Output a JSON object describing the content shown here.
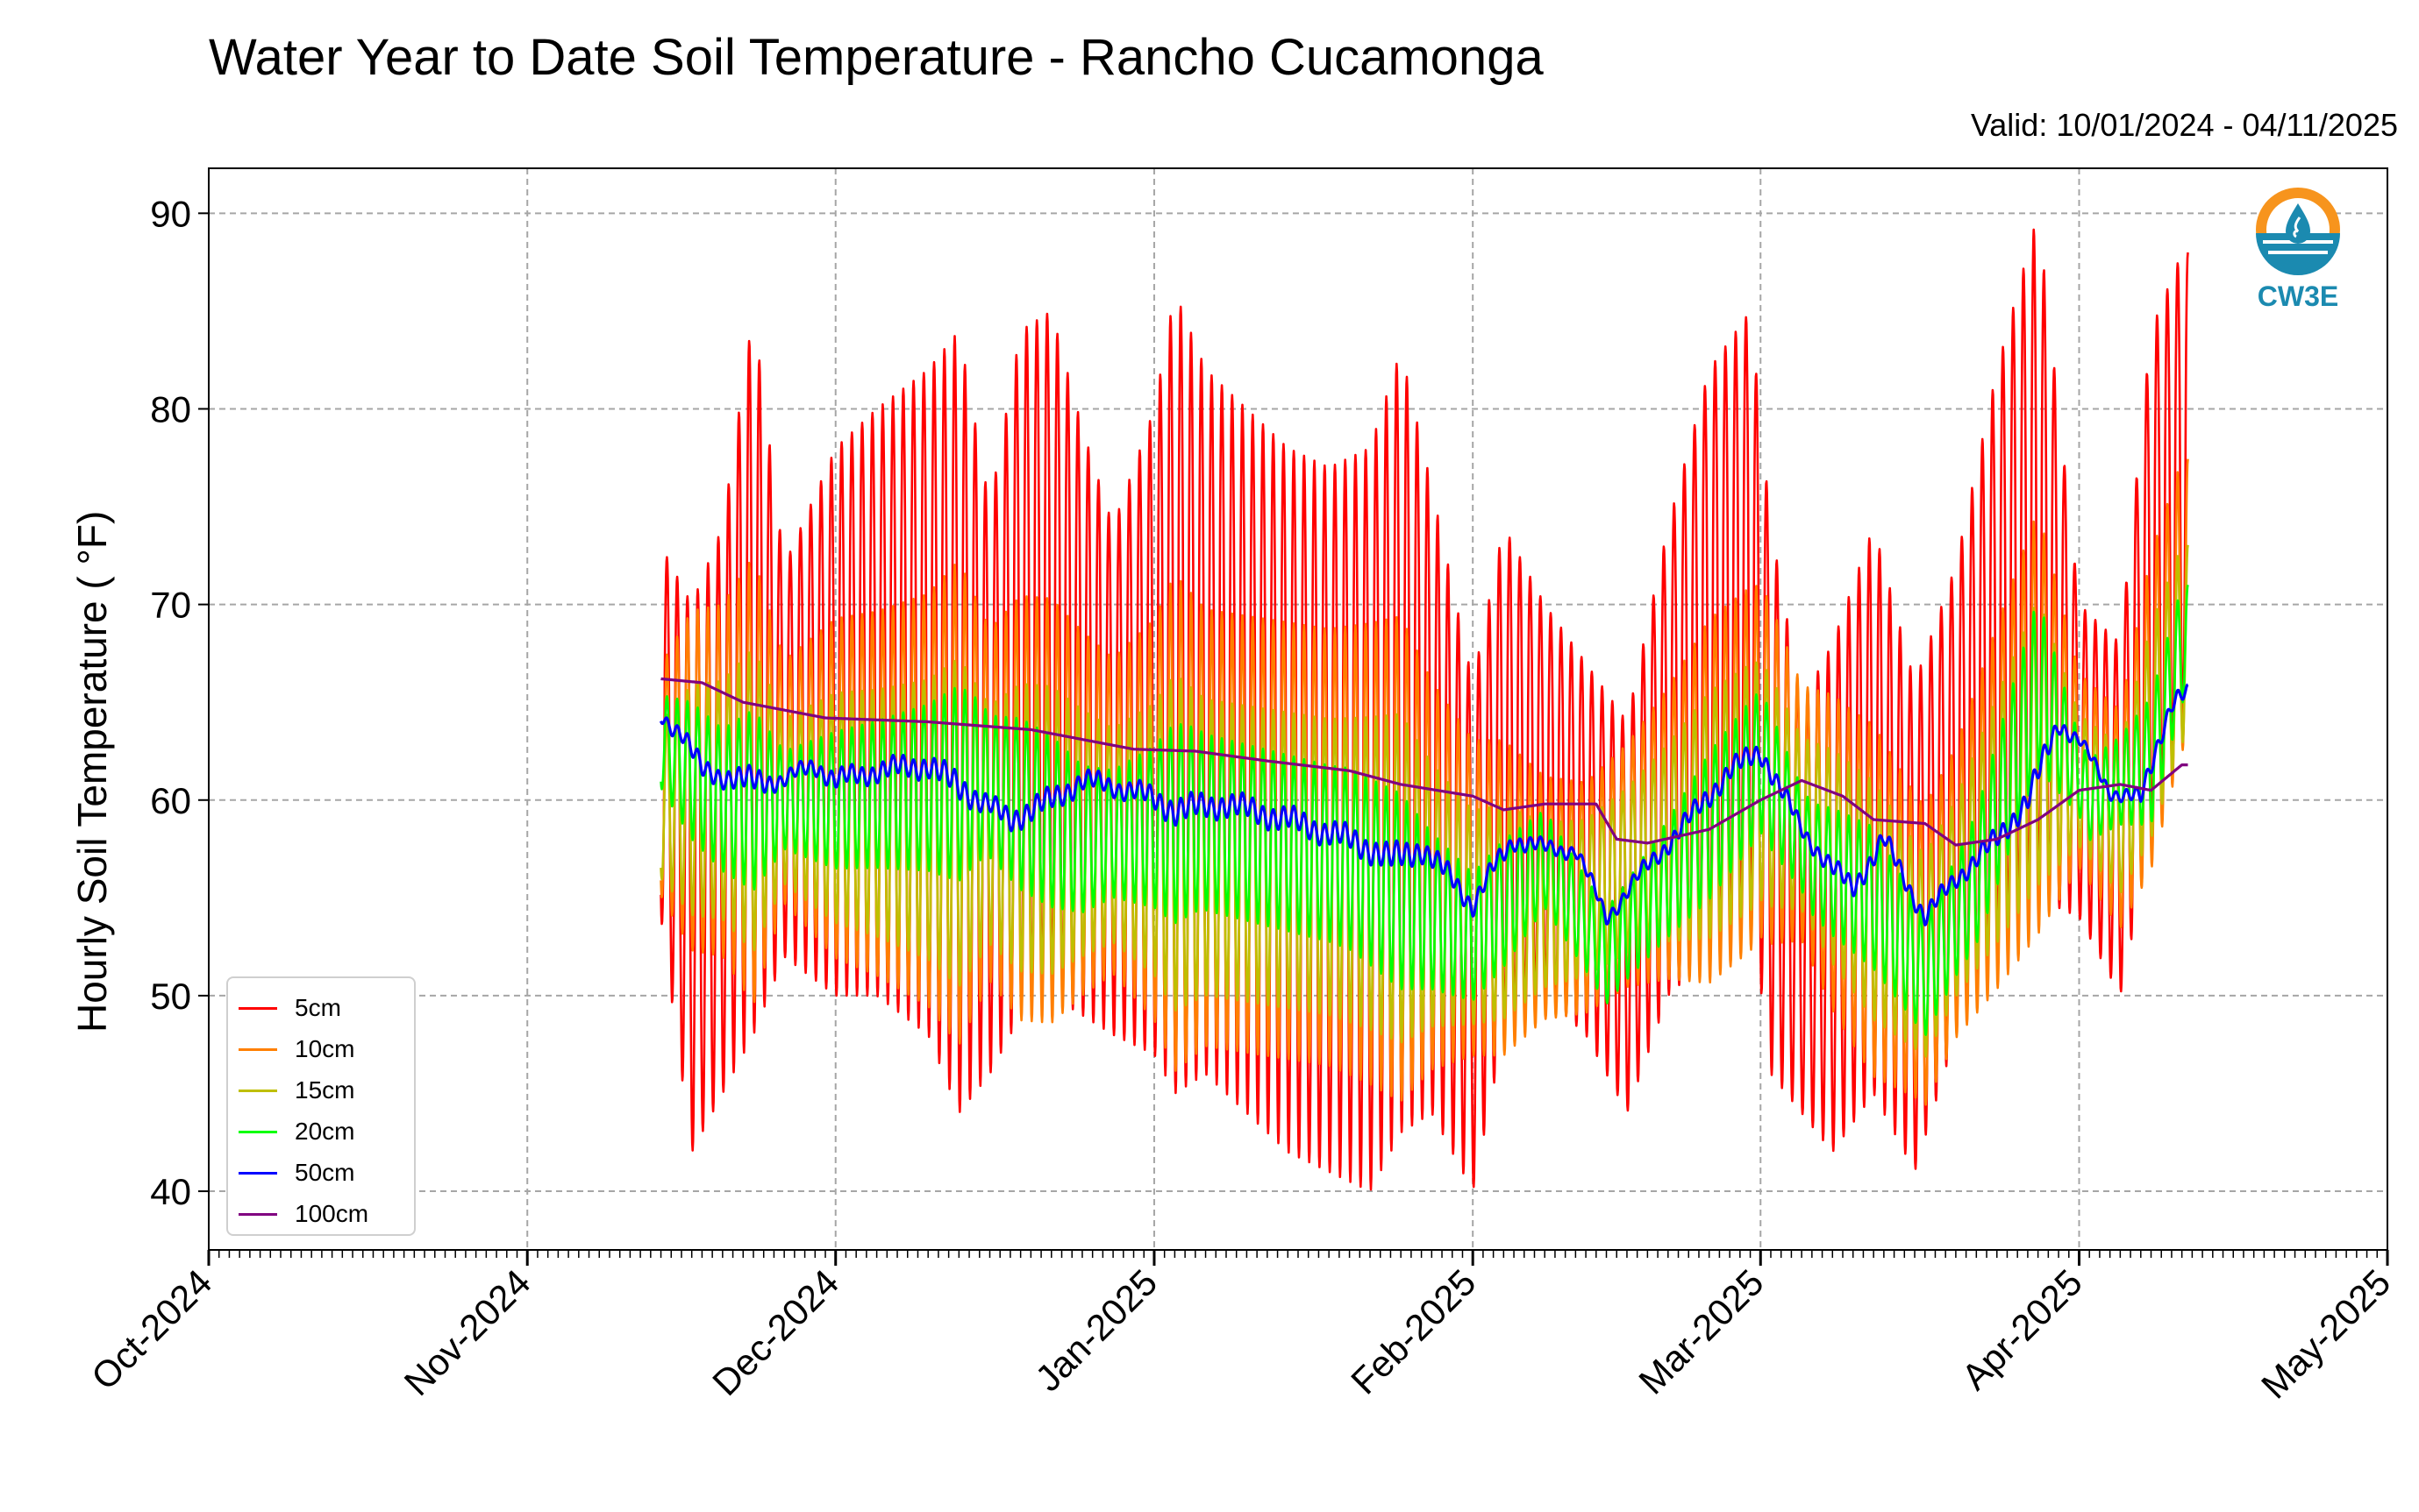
{
  "chart_data": {
    "type": "line",
    "title": "Water Year to Date Soil Temperature - Rancho Cucamonga",
    "subtitle": "Valid: 10/01/2024 - 04/11/2025",
    "ylabel": "Hourly Soil Temperature ( °F)",
    "xlabel": "",
    "xlim": [
      "2024-10-01",
      "2025-05-01"
    ],
    "ylim": [
      37,
      92.3
    ],
    "x_ticks": [
      {
        "date": "2024-10-01",
        "label": "Oct-2024"
      },
      {
        "date": "2024-11-01",
        "label": "Nov-2024"
      },
      {
        "date": "2024-12-01",
        "label": "Dec-2024"
      },
      {
        "date": "2025-01-01",
        "label": "Jan-2025"
      },
      {
        "date": "2025-02-01",
        "label": "Feb-2025"
      },
      {
        "date": "2025-03-01",
        "label": "Mar-2025"
      },
      {
        "date": "2025-04-01",
        "label": "Apr-2025"
      },
      {
        "date": "2025-05-01",
        "label": "May-2025"
      }
    ],
    "y_ticks": [
      40,
      50,
      60,
      70,
      80,
      90
    ],
    "grid": true,
    "legend_position": "lower-left",
    "series": [
      {
        "name": "5cm",
        "color": "#ff0000",
        "trend": [
          [
            "2024-11-14",
            62
          ],
          [
            "2024-11-25",
            63
          ],
          [
            "2024-12-05",
            61
          ],
          [
            "2024-12-20",
            62
          ],
          [
            "2025-01-05",
            60
          ],
          [
            "2025-01-20",
            59
          ],
          [
            "2025-02-01",
            56
          ],
          [
            "2025-02-15",
            56
          ],
          [
            "2025-03-01",
            64
          ],
          [
            "2025-03-08",
            57
          ],
          [
            "2025-03-17",
            54
          ],
          [
            "2025-03-28",
            66
          ],
          [
            "2025-04-05",
            60
          ],
          [
            "2025-04-11",
            72
          ]
        ],
        "daily_max": [
          [
            "2024-11-14",
            73
          ],
          [
            "2024-11-17",
            70
          ],
          [
            "2024-11-20",
            74
          ],
          [
            "2024-11-23",
            85
          ],
          [
            "2024-11-26",
            72
          ],
          [
            "2024-12-01",
            78
          ],
          [
            "2024-12-05",
            80
          ],
          [
            "2024-12-10",
            82
          ],
          [
            "2024-12-13",
            84
          ],
          [
            "2024-12-16",
            75
          ],
          [
            "2024-12-19",
            84
          ],
          [
            "2024-12-22",
            85
          ],
          [
            "2024-12-25",
            79
          ],
          [
            "2024-12-28",
            74
          ],
          [
            "2025-01-01",
            80
          ],
          [
            "2025-01-03",
            86
          ],
          [
            "2025-01-06",
            82
          ],
          [
            "2025-01-10",
            80
          ],
          [
            "2025-01-14",
            78
          ],
          [
            "2025-01-18",
            77
          ],
          [
            "2025-01-22",
            78
          ],
          [
            "2025-01-25",
            83
          ],
          [
            "2025-01-28",
            76
          ],
          [
            "2025-02-01",
            66
          ],
          [
            "2025-02-04",
            74
          ],
          [
            "2025-02-08",
            70
          ],
          [
            "2025-02-12",
            67
          ],
          [
            "2025-02-16",
            64
          ],
          [
            "2025-02-20",
            74
          ],
          [
            "2025-02-24",
            82
          ],
          [
            "2025-02-28",
            85
          ],
          [
            "2025-03-02",
            74
          ],
          [
            "2025-03-05",
            65
          ],
          [
            "2025-03-08",
            68
          ],
          [
            "2025-03-12",
            74
          ],
          [
            "2025-03-16",
            66
          ],
          [
            "2025-03-20",
            72
          ],
          [
            "2025-03-24",
            82
          ],
          [
            "2025-03-28",
            90
          ],
          [
            "2025-04-01",
            70
          ],
          [
            "2025-04-05",
            68
          ],
          [
            "2025-04-08",
            84
          ],
          [
            "2025-04-11",
            88
          ]
        ],
        "daily_min": [
          [
            "2024-11-14",
            54
          ],
          [
            "2024-11-17",
            42
          ],
          [
            "2024-11-20",
            45
          ],
          [
            "2024-11-23",
            48
          ],
          [
            "2024-11-26",
            52
          ],
          [
            "2024-12-01",
            50
          ],
          [
            "2024-12-05",
            50
          ],
          [
            "2024-12-10",
            48
          ],
          [
            "2024-12-13",
            44
          ],
          [
            "2024-12-16",
            46
          ],
          [
            "2024-12-19",
            49
          ],
          [
            "2024-12-22",
            50
          ],
          [
            "2024-12-25",
            49
          ],
          [
            "2024-12-28",
            48
          ],
          [
            "2025-01-01",
            47
          ],
          [
            "2025-01-03",
            45
          ],
          [
            "2025-01-06",
            46
          ],
          [
            "2025-01-10",
            44
          ],
          [
            "2025-01-14",
            42
          ],
          [
            "2025-01-18",
            41
          ],
          [
            "2025-01-22",
            40
          ],
          [
            "2025-01-25",
            43
          ],
          [
            "2025-01-28",
            44
          ],
          [
            "2025-02-01",
            40
          ],
          [
            "2025-02-04",
            48
          ],
          [
            "2025-02-08",
            50
          ],
          [
            "2025-02-12",
            48
          ],
          [
            "2025-02-16",
            44
          ],
          [
            "2025-02-20",
            50
          ],
          [
            "2025-02-24",
            52
          ],
          [
            "2025-02-28",
            55
          ],
          [
            "2025-03-02",
            46
          ],
          [
            "2025-03-05",
            44
          ],
          [
            "2025-03-08",
            42
          ],
          [
            "2025-03-12",
            45
          ],
          [
            "2025-03-16",
            41
          ],
          [
            "2025-03-20",
            48
          ],
          [
            "2025-03-24",
            52
          ],
          [
            "2025-03-28",
            55
          ],
          [
            "2025-04-01",
            54
          ],
          [
            "2025-04-05",
            50
          ],
          [
            "2025-04-08",
            58
          ],
          [
            "2025-04-11",
            64
          ]
        ]
      },
      {
        "name": "10cm",
        "color": "#ff7f00",
        "trend": [
          [
            "2024-11-14",
            61
          ],
          [
            "2024-11-25",
            61
          ],
          [
            "2024-12-10",
            60
          ],
          [
            "2025-01-01",
            59
          ],
          [
            "2025-01-25",
            57
          ],
          [
            "2025-02-01",
            55
          ],
          [
            "2025-02-12",
            55
          ],
          [
            "2025-03-01",
            62
          ],
          [
            "2025-03-10",
            56
          ],
          [
            "2025-03-17",
            52
          ],
          [
            "2025-03-28",
            64
          ],
          [
            "2025-04-05",
            59
          ],
          [
            "2025-04-11",
            70
          ]
        ]
      },
      {
        "name": "15cm",
        "color": "#bfbf00",
        "trend": [
          [
            "2024-11-14",
            60
          ],
          [
            "2024-11-25",
            60
          ],
          [
            "2024-12-10",
            59
          ],
          [
            "2025-01-01",
            58
          ],
          [
            "2025-01-25",
            56
          ],
          [
            "2025-02-01",
            54
          ],
          [
            "2025-02-12",
            55
          ],
          [
            "2025-03-01",
            61
          ],
          [
            "2025-03-10",
            56
          ],
          [
            "2025-03-17",
            52
          ],
          [
            "2025-03-28",
            63
          ],
          [
            "2025-04-05",
            59
          ],
          [
            "2025-04-11",
            68
          ]
        ]
      },
      {
        "name": "20cm",
        "color": "#00ff00",
        "trend": [
          [
            "2024-11-14",
            63
          ],
          [
            "2024-11-20",
            60
          ],
          [
            "2024-12-01",
            60
          ],
          [
            "2024-12-15",
            61
          ],
          [
            "2024-12-25",
            58
          ],
          [
            "2025-01-05",
            59
          ],
          [
            "2025-01-20",
            57
          ],
          [
            "2025-02-01",
            53
          ],
          [
            "2025-02-08",
            57
          ],
          [
            "2025-02-14",
            52
          ],
          [
            "2025-03-01",
            62
          ],
          [
            "2025-03-06",
            57
          ],
          [
            "2025-03-12",
            55
          ],
          [
            "2025-03-17",
            51
          ],
          [
            "2025-03-22",
            56
          ],
          [
            "2025-03-28",
            66
          ],
          [
            "2025-04-02",
            60
          ],
          [
            "2025-04-08",
            62
          ],
          [
            "2025-04-11",
            68
          ]
        ]
      },
      {
        "name": "50cm",
        "color": "#0000ff",
        "trend": [
          [
            "2024-11-14",
            64.3
          ],
          [
            "2024-11-16",
            63.5
          ],
          [
            "2024-11-18",
            61.5
          ],
          [
            "2024-11-22",
            61
          ],
          [
            "2024-11-26",
            61
          ],
          [
            "2024-11-29",
            61.8
          ],
          [
            "2024-12-01",
            61
          ],
          [
            "2024-12-05",
            61.5
          ],
          [
            "2024-12-10",
            61.8
          ],
          [
            "2024-12-15",
            60
          ],
          [
            "2024-12-18",
            59
          ],
          [
            "2024-12-22",
            60
          ],
          [
            "2024-12-25",
            61
          ],
          [
            "2024-12-30",
            60.5
          ],
          [
            "2025-01-03",
            59.5
          ],
          [
            "2025-01-08",
            59.8
          ],
          [
            "2025-01-14",
            59
          ],
          [
            "2025-01-20",
            58
          ],
          [
            "2025-01-24",
            57
          ],
          [
            "2025-01-27",
            57.5
          ],
          [
            "2025-01-30",
            56
          ],
          [
            "2025-02-01",
            54.6
          ],
          [
            "2025-02-03",
            56.5
          ],
          [
            "2025-02-05",
            58
          ],
          [
            "2025-02-08",
            57.5
          ],
          [
            "2025-02-11",
            57.5
          ],
          [
            "2025-02-14",
            54
          ],
          [
            "2025-02-17",
            56
          ],
          [
            "2025-02-22",
            59
          ],
          [
            "2025-02-26",
            61.5
          ],
          [
            "2025-03-01",
            62.5
          ],
          [
            "2025-03-05",
            58.5
          ],
          [
            "2025-03-08",
            56.5
          ],
          [
            "2025-03-10",
            55.5
          ],
          [
            "2025-03-13",
            58
          ],
          [
            "2025-03-15",
            56
          ],
          [
            "2025-03-17",
            54
          ],
          [
            "2025-03-20",
            56
          ],
          [
            "2025-03-24",
            58
          ],
          [
            "2025-03-27",
            60
          ],
          [
            "2025-03-30",
            64
          ],
          [
            "2025-04-01",
            63
          ],
          [
            "2025-04-04",
            60.5
          ],
          [
            "2025-04-07",
            60
          ],
          [
            "2025-04-09",
            63.5
          ],
          [
            "2025-04-10",
            65
          ],
          [
            "2025-04-11",
            65.3
          ]
        ]
      },
      {
        "name": "100cm",
        "color": "#800080",
        "trend": [
          [
            "2024-11-14",
            66.2
          ],
          [
            "2024-11-18",
            66
          ],
          [
            "2024-11-22",
            65
          ],
          [
            "2024-11-30",
            64.2
          ],
          [
            "2024-12-10",
            64
          ],
          [
            "2024-12-20",
            63.6
          ],
          [
            "2024-12-26",
            63
          ],
          [
            "2024-12-30",
            62.6
          ],
          [
            "2025-01-05",
            62.5
          ],
          [
            "2025-01-12",
            62
          ],
          [
            "2025-01-20",
            61.5
          ],
          [
            "2025-01-25",
            60.8
          ],
          [
            "2025-02-01",
            60.2
          ],
          [
            "2025-02-04",
            59.5
          ],
          [
            "2025-02-08",
            59.8
          ],
          [
            "2025-02-13",
            59.8
          ],
          [
            "2025-02-15",
            58
          ],
          [
            "2025-02-18",
            57.8
          ],
          [
            "2025-02-24",
            58.5
          ],
          [
            "2025-03-01",
            60
          ],
          [
            "2025-03-05",
            61
          ],
          [
            "2025-03-09",
            60.2
          ],
          [
            "2025-03-12",
            59
          ],
          [
            "2025-03-17",
            58.8
          ],
          [
            "2025-03-20",
            57.7
          ],
          [
            "2025-03-24",
            58
          ],
          [
            "2025-03-28",
            59
          ],
          [
            "2025-04-01",
            60.5
          ],
          [
            "2025-04-05",
            60.8
          ],
          [
            "2025-04-08",
            60.5
          ],
          [
            "2025-04-11",
            61.8
          ]
        ]
      }
    ]
  },
  "logo": {
    "text": "CW3E",
    "icon": "water-drop-logo-icon",
    "colors": [
      "#f7941d",
      "#1b8ab0"
    ]
  }
}
